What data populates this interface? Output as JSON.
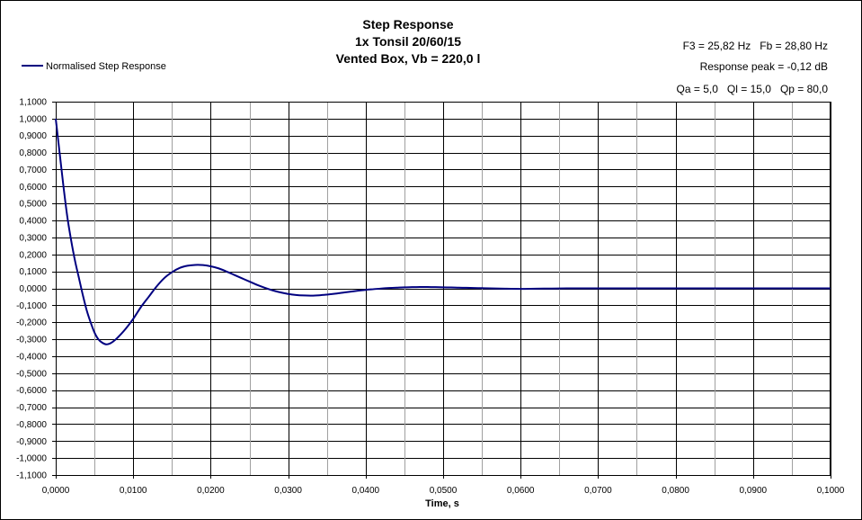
{
  "chart_data": {
    "type": "line",
    "title_lines": [
      "Step Response",
      "1x Tonsil 20/60/15",
      "Vented Box, Vb = 220,0 l"
    ],
    "xlabel": "Time, s",
    "ylabel": "",
    "xlim": [
      0,
      0.1
    ],
    "ylim": [
      -1.1,
      1.1
    ],
    "x_major_step": 0.01,
    "x_minor_step": 0.005,
    "y_step": 0.1,
    "grid": true,
    "legend_position": "top-left",
    "info_lines": [
      "F3 = 25,82 Hz   Fb = 28,80 Hz",
      "Response peak = -0,12 dB",
      "Qa = 5,0   Ql = 15,0   Qp = 80,0"
    ],
    "x_tick_labels": [
      "0,0000",
      "0,0100",
      "0,0200",
      "0,0300",
      "0,0400",
      "0,0500",
      "0,0600",
      "0,0700",
      "0,0800",
      "0,0900",
      "0,1000"
    ],
    "y_tick_labels": [
      "1,1000",
      "1,0000",
      "0,9000",
      "0,8000",
      "0,7000",
      "0,6000",
      "0,5000",
      "0,4000",
      "0,3000",
      "0,2000",
      "0,1000",
      "0,0000",
      "-0,1000",
      "-0,2000",
      "-0,3000",
      "-0,4000",
      "-0,5000",
      "-0,6000",
      "-0,7000",
      "-0,8000",
      "-0,9000",
      "-1,0000",
      "-1,1000"
    ],
    "series": [
      {
        "name": "Normalised Step Response",
        "color": "#000080",
        "x": [
          0,
          0.0005,
          0.001,
          0.0015,
          0.002,
          0.0025,
          0.003,
          0.0035,
          0.004,
          0.0045,
          0.005,
          0.0055,
          0.006,
          0.0065,
          0.007,
          0.0075,
          0.008,
          0.009,
          0.01,
          0.011,
          0.012,
          0.013,
          0.014,
          0.015,
          0.016,
          0.017,
          0.018,
          0.019,
          0.02,
          0.021,
          0.022,
          0.023,
          0.024,
          0.025,
          0.026,
          0.027,
          0.028,
          0.029,
          0.03,
          0.031,
          0.032,
          0.033,
          0.034,
          0.035,
          0.036,
          0.037,
          0.038,
          0.039,
          0.04,
          0.041,
          0.042,
          0.043,
          0.044,
          0.045,
          0.046,
          0.047,
          0.048,
          0.049,
          0.05,
          0.051,
          0.052,
          0.053,
          0.054,
          0.055,
          0.056,
          0.058,
          0.06,
          0.062,
          0.064,
          0.066,
          0.068,
          0.07,
          0.075,
          0.08,
          0.085,
          0.09,
          0.095,
          0.1
        ],
        "y": [
          1.0,
          0.8,
          0.6,
          0.42,
          0.28,
          0.16,
          0.06,
          -0.04,
          -0.13,
          -0.2,
          -0.26,
          -0.3,
          -0.32,
          -0.33,
          -0.325,
          -0.31,
          -0.29,
          -0.24,
          -0.18,
          -0.11,
          -0.05,
          0.01,
          0.06,
          0.095,
          0.12,
          0.133,
          0.138,
          0.137,
          0.13,
          0.118,
          0.1,
          0.08,
          0.06,
          0.04,
          0.02,
          0.003,
          -0.012,
          -0.024,
          -0.033,
          -0.039,
          -0.042,
          -0.043,
          -0.041,
          -0.037,
          -0.032,
          -0.026,
          -0.02,
          -0.014,
          -0.009,
          -0.005,
          -0.001,
          0.002,
          0.004,
          0.006,
          0.007,
          0.008,
          0.008,
          0.007,
          0.006,
          0.005,
          0.004,
          0.003,
          0.002,
          0.001,
          0.0,
          -0.002,
          -0.003,
          -0.002,
          -0.001,
          0.0,
          0.0,
          0.0,
          0.0,
          0.0,
          0.0,
          0.0,
          0.0,
          0.0
        ]
      }
    ]
  }
}
